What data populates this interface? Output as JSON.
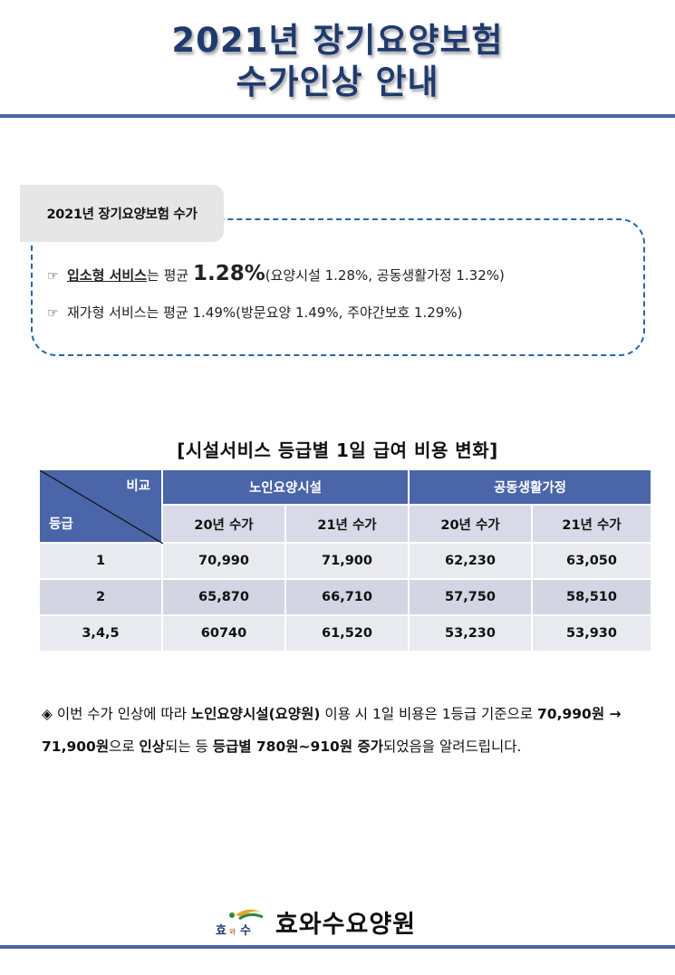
{
  "header": {
    "title_line1": "2021년 장기요양보험",
    "title_line2": "수가인상 안내"
  },
  "summary": {
    "tab_label": "2021년 장기요양보험 수가",
    "line1": {
      "bullet": "☞",
      "service": "입소형 서비스",
      "mid": "는 평균 ",
      "rate": "1.28%",
      "detail": "(요양시설 1.28%, 공동생활가정 1.32%)"
    },
    "line2": {
      "bullet": "☞",
      "text": "재가형 서비스는 평균 1.49%(방문요양 1.49%, 주야간보호 1.29%)"
    }
  },
  "table": {
    "title": "[시설서비스 등급별 1일 급여 비용 변화]",
    "corner_top": "비교",
    "corner_bottom": "등급",
    "groups": [
      "노인요양시설",
      "공동생활가정"
    ],
    "subheaders": [
      "20년 수가",
      "21년 수가",
      "20년 수가",
      "21년 수가"
    ],
    "rows": [
      [
        "1",
        "70,990",
        "71,900",
        "62,230",
        "63,050"
      ],
      [
        "2",
        "65,870",
        "66,710",
        "57,750",
        "58,510"
      ],
      [
        "3,4,5",
        "60740",
        "61,520",
        "53,230",
        "53,930"
      ]
    ]
  },
  "notice": {
    "p1": "◈ 이번 수가 인상에 따라 ",
    "p2": "노인요양시설(요양원)",
    "p3": " 이용 시 1일 비용은 1등급 기준으로 ",
    "p4": "70,990원 → 71,900원",
    "p5": "으로 ",
    "p6": "인상",
    "p7": "되는 등 ",
    "p8": "등급별 780원~910원 증가",
    "p9": "되었음을 알려드립니다."
  },
  "footer": {
    "logo_text": "효와수",
    "org_name": "효와수요양원"
  },
  "colors": {
    "title": "#1f3a6e",
    "rule": "#4a65a8",
    "table_header": "#4a65a8",
    "box_border": "#2566a8"
  }
}
